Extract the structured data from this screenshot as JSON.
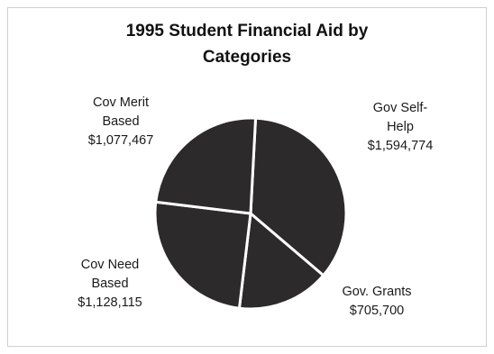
{
  "chart_data": {
    "type": "pie",
    "title": [
      "1995 Student Financial Aid by",
      "Categories"
    ],
    "slices": [
      {
        "label": [
          "Gov Self-",
          "Help"
        ],
        "value": 1594774,
        "value_label": "$1,594,774"
      },
      {
        "label": [
          "Gov. Grants"
        ],
        "value": 705700,
        "value_label": "$705,700"
      },
      {
        "label": [
          "Cov Need",
          "Based"
        ],
        "value": 1128115,
        "value_label": "$1,128,115"
      },
      {
        "label": [
          "Cov Merit",
          "Based"
        ],
        "value": 1077467,
        "value_label": "$1,077,467"
      }
    ],
    "slice_color": "#2d2a2b",
    "separator_color": "#ffffff",
    "legend": "none"
  }
}
